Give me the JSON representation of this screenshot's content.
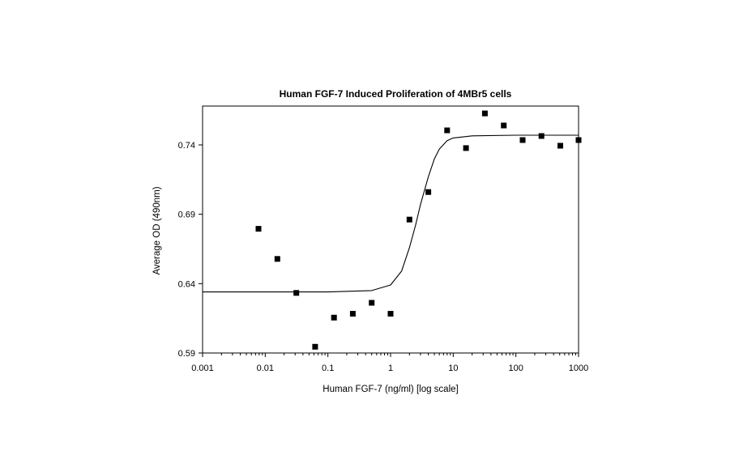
{
  "chart_data": {
    "type": "scatter",
    "title": "Human FGF-7 Induced Proliferation of 4MBr5 cells",
    "xlabel": "Human FGF-7 (ng/ml) [log scale]",
    "ylabel": "Average OD (490nm)",
    "x_scale": "log",
    "xlim": [
      0.001,
      1000
    ],
    "ylim": [
      0.59,
      0.768
    ],
    "x_ticks": [
      {
        "value": 0.001,
        "label": "0.001"
      },
      {
        "value": 0.01,
        "label": "0.01"
      },
      {
        "value": 0.1,
        "label": "0.1"
      },
      {
        "value": 1,
        "label": "1"
      },
      {
        "value": 10,
        "label": "10"
      },
      {
        "value": 100,
        "label": "100"
      },
      {
        "value": 1000,
        "label": "1000"
      }
    ],
    "y_ticks": [
      {
        "value": 0.59,
        "label": "0.59"
      },
      {
        "value": 0.64,
        "label": "0.64"
      },
      {
        "value": 0.69,
        "label": "0.69"
      },
      {
        "value": 0.74,
        "label": "0.74"
      }
    ],
    "grid": false,
    "series": [
      {
        "kind": "scatter",
        "color": "#000000",
        "points": [
          {
            "x": 0.0078,
            "y": 0.6795
          },
          {
            "x": 0.0156,
            "y": 0.6578
          },
          {
            "x": 0.0313,
            "y": 0.6333
          },
          {
            "x": 0.0625,
            "y": 0.5945
          },
          {
            "x": 0.125,
            "y": 0.6155
          },
          {
            "x": 0.25,
            "y": 0.6183
          },
          {
            "x": 0.5,
            "y": 0.6262
          },
          {
            "x": 1.0,
            "y": 0.6183
          },
          {
            "x": 2.0,
            "y": 0.6862
          },
          {
            "x": 4.0,
            "y": 0.706
          },
          {
            "x": 8.0,
            "y": 0.7505
          },
          {
            "x": 16.0,
            "y": 0.7377
          },
          {
            "x": 32.0,
            "y": 0.7627
          },
          {
            "x": 64.0,
            "y": 0.754
          },
          {
            "x": 128.0,
            "y": 0.7435
          },
          {
            "x": 256.0,
            "y": 0.7464
          },
          {
            "x": 512.0,
            "y": 0.7394
          },
          {
            "x": 1000.0,
            "y": 0.7435
          }
        ]
      },
      {
        "kind": "curve",
        "color": "#000000",
        "points": [
          {
            "x": 0.001,
            "y": 0.634
          },
          {
            "x": 0.01,
            "y": 0.634
          },
          {
            "x": 0.1,
            "y": 0.634
          },
          {
            "x": 0.5,
            "y": 0.635
          },
          {
            "x": 1.0,
            "y": 0.639
          },
          {
            "x": 1.5,
            "y": 0.649
          },
          {
            "x": 2.0,
            "y": 0.666
          },
          {
            "x": 2.5,
            "y": 0.682
          },
          {
            "x": 3.0,
            "y": 0.697
          },
          {
            "x": 4.0,
            "y": 0.717
          },
          {
            "x": 5.0,
            "y": 0.73
          },
          {
            "x": 6.0,
            "y": 0.737
          },
          {
            "x": 8.0,
            "y": 0.743
          },
          {
            "x": 10.0,
            "y": 0.745
          },
          {
            "x": 20.0,
            "y": 0.7465
          },
          {
            "x": 100.0,
            "y": 0.747
          },
          {
            "x": 1000.0,
            "y": 0.747
          }
        ]
      }
    ]
  }
}
